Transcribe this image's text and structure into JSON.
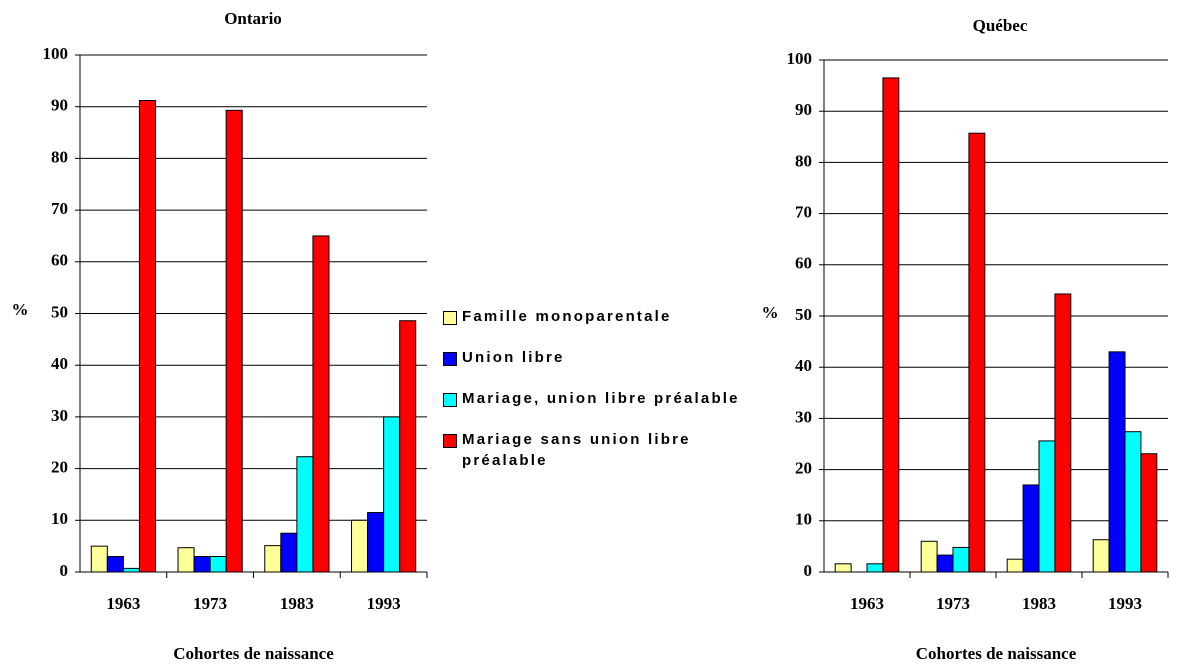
{
  "chart_data": [
    {
      "type": "bar",
      "title": "Ontario",
      "ylabel": "%",
      "xlabel": "Cohortes de naissance",
      "categories": [
        "1963",
        "1973",
        "1983",
        "1993"
      ],
      "ylim": [
        0,
        100
      ],
      "yticks": [
        0,
        10,
        20,
        30,
        40,
        50,
        60,
        70,
        80,
        90,
        100
      ],
      "grid": true,
      "series": [
        {
          "name": "Famille monoparentale",
          "color": "#ffff99",
          "values": [
            5,
            4.7,
            5.1,
            10
          ]
        },
        {
          "name": "Union libre",
          "color": "#0000ff",
          "values": [
            3,
            3,
            7.5,
            11.5
          ]
        },
        {
          "name": "Mariage, union libre préalable",
          "color": "#00ffff",
          "values": [
            0.7,
            3,
            22.3,
            30
          ]
        },
        {
          "name": "Mariage sans union libre préalable",
          "color": "#ff0000",
          "values": [
            91.2,
            89.3,
            65,
            48.6
          ]
        }
      ]
    },
    {
      "type": "bar",
      "title": "Québec",
      "ylabel": "%",
      "xlabel": "Cohortes de naissance",
      "categories": [
        "1963",
        "1973",
        "1983",
        "1993"
      ],
      "ylim": [
        0,
        100
      ],
      "yticks": [
        0,
        10,
        20,
        30,
        40,
        50,
        60,
        70,
        80,
        90,
        100
      ],
      "grid": true,
      "series": [
        {
          "color": "#ffff99",
          "values": [
            1.6,
            6,
            2.5,
            6.3
          ]
        },
        {
          "color": "#0000ff",
          "values": [
            0,
            3.3,
            17,
            43
          ]
        },
        {
          "color": "#00ffff",
          "values": [
            1.6,
            4.8,
            25.6,
            27.4
          ]
        },
        {
          "color": "#ff0000",
          "values": [
            96.5,
            85.7,
            54.3,
            23.1
          ]
        }
      ]
    }
  ]
}
